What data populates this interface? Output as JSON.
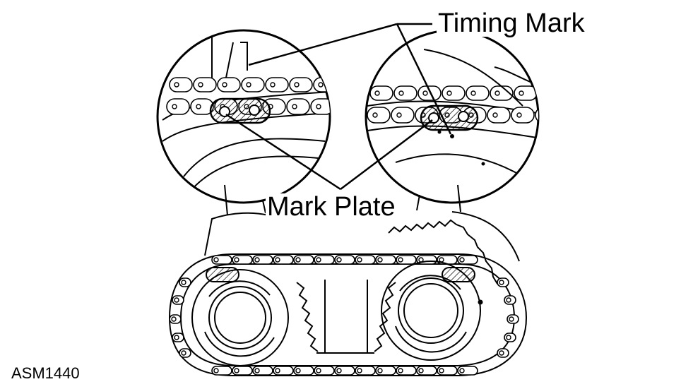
{
  "labels": {
    "timing_mark": "Timing Mark",
    "mark_plate": "Mark Plate",
    "figure_code": "ASM1440"
  },
  "colors": {
    "line": "#000000",
    "background": "#ffffff"
  }
}
